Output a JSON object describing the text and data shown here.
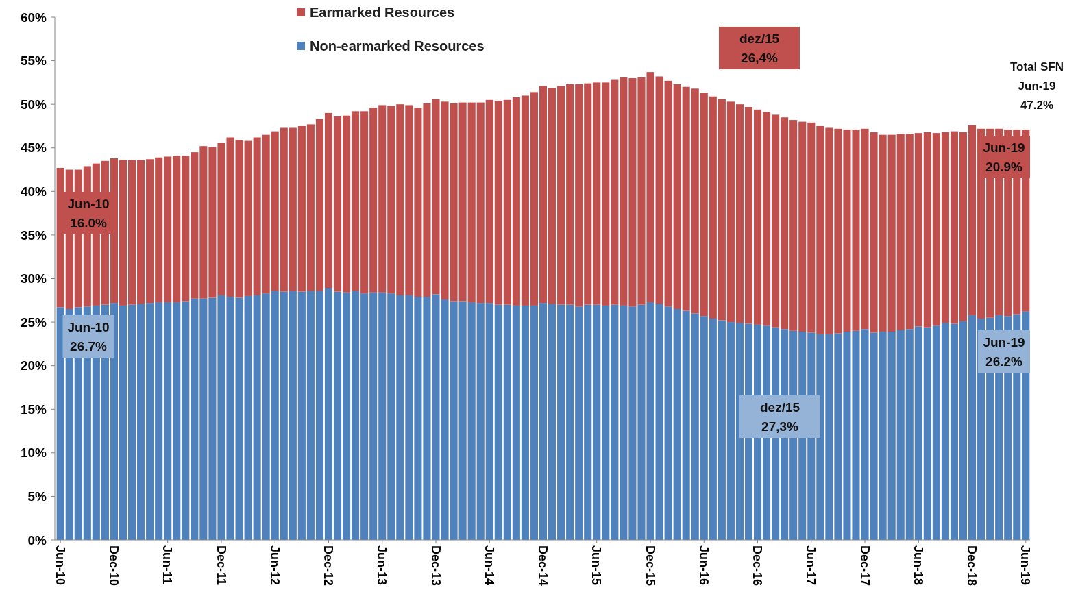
{
  "chart_data": {
    "type": "bar",
    "stacked": true,
    "legend": "top",
    "grid": false,
    "categories": [
      "Jun-10",
      null,
      null,
      null,
      null,
      null,
      "Dec-10",
      null,
      null,
      null,
      null,
      null,
      "Jun-11",
      null,
      null,
      null,
      null,
      null,
      "Dec-11",
      null,
      null,
      null,
      null,
      null,
      "Jun-12",
      null,
      null,
      null,
      null,
      null,
      "Dec-12",
      null,
      null,
      null,
      null,
      null,
      "Jun-13",
      null,
      null,
      null,
      null,
      null,
      "Dec-13",
      null,
      null,
      null,
      null,
      null,
      "Jun-14",
      null,
      null,
      null,
      null,
      null,
      "Dec-14",
      null,
      null,
      null,
      null,
      null,
      "Jun-15",
      null,
      null,
      null,
      null,
      null,
      "Dec-15",
      null,
      null,
      null,
      null,
      null,
      "Jun-16",
      null,
      null,
      null,
      null,
      null,
      "Dec-16",
      null,
      null,
      null,
      null,
      null,
      "Jun-17",
      null,
      null,
      null,
      null,
      null,
      "Dec-17",
      null,
      null,
      null,
      null,
      null,
      "Jun-18",
      null,
      null,
      null,
      null,
      null,
      "Dec-18",
      null,
      null,
      null,
      null,
      null,
      "Jun-19"
    ],
    "ylim": [
      0,
      60
    ],
    "yticks": [
      {
        "value": 0,
        "label": "0%"
      },
      {
        "value": 5,
        "label": "5%"
      },
      {
        "value": 10,
        "label": "10%"
      },
      {
        "value": 15,
        "label": "15%"
      },
      {
        "value": 20,
        "label": "20%"
      },
      {
        "value": 25,
        "label": "25%"
      },
      {
        "value": 30,
        "label": "30%"
      },
      {
        "value": 35,
        "label": "35%"
      },
      {
        "value": 40,
        "label": "40%"
      },
      {
        "value": 45,
        "label": "45%"
      },
      {
        "value": 50,
        "label": "50%"
      },
      {
        "value": 55,
        "label": "55%"
      },
      {
        "value": 60,
        "label": "60%"
      }
    ],
    "series": [
      {
        "name": "Non-earmarked Resources",
        "color": "#4f81bd",
        "values": [
          26.7,
          26.5,
          26.7,
          26.8,
          26.9,
          27.0,
          27.2,
          26.9,
          27.0,
          27.1,
          27.2,
          27.3,
          27.3,
          27.3,
          27.4,
          27.7,
          27.7,
          27.8,
          28.1,
          27.9,
          27.8,
          28.0,
          28.1,
          28.3,
          28.6,
          28.5,
          28.6,
          28.5,
          28.6,
          28.6,
          28.9,
          28.5,
          28.4,
          28.6,
          28.3,
          28.4,
          28.4,
          28.3,
          28.1,
          28.1,
          27.9,
          27.9,
          28.2,
          27.6,
          27.4,
          27.4,
          27.3,
          27.2,
          27.2,
          27.0,
          27.0,
          26.9,
          26.9,
          26.9,
          27.2,
          27.1,
          27.0,
          27.0,
          26.8,
          27.0,
          27.0,
          26.9,
          27.0,
          26.9,
          26.8,
          27.0,
          27.3,
          27.1,
          26.8,
          26.5,
          26.3,
          26.0,
          25.7,
          25.4,
          25.2,
          25.0,
          24.9,
          24.8,
          24.7,
          24.6,
          24.4,
          24.2,
          24.0,
          23.9,
          23.8,
          23.6,
          23.6,
          23.7,
          23.9,
          24.0,
          24.2,
          23.8,
          23.9,
          23.9,
          24.1,
          24.2,
          24.5,
          24.4,
          24.6,
          24.9,
          24.8,
          25.1,
          25.8,
          25.4,
          25.5,
          25.8,
          25.7,
          25.9,
          26.2
        ]
      },
      {
        "name": "Earmarked Resources",
        "color": "#c0504d",
        "values": [
          16.0,
          16.0,
          15.8,
          16.1,
          16.3,
          16.5,
          16.6,
          16.7,
          16.6,
          16.5,
          16.5,
          16.6,
          16.7,
          16.8,
          16.7,
          16.8,
          17.5,
          17.3,
          17.5,
          18.3,
          18.1,
          17.8,
          18.1,
          18.2,
          18.3,
          18.8,
          18.7,
          19.0,
          19.1,
          19.7,
          20.1,
          20.1,
          20.3,
          20.6,
          20.9,
          21.2,
          21.5,
          21.5,
          21.9,
          21.8,
          21.7,
          22.2,
          22.4,
          22.7,
          22.7,
          22.8,
          22.9,
          23.0,
          23.3,
          23.4,
          23.5,
          23.9,
          24.1,
          24.5,
          24.9,
          24.8,
          25.1,
          25.3,
          25.5,
          25.4,
          25.5,
          25.6,
          25.8,
          26.2,
          26.2,
          26.1,
          26.4,
          26.1,
          25.9,
          25.8,
          25.7,
          25.8,
          25.6,
          25.5,
          25.4,
          25.3,
          25.1,
          24.9,
          24.7,
          24.5,
          24.4,
          24.3,
          24.2,
          24.1,
          24.1,
          23.9,
          23.7,
          23.5,
          23.2,
          23.1,
          23.0,
          23.0,
          22.6,
          22.6,
          22.5,
          22.4,
          22.2,
          22.4,
          22.1,
          21.9,
          22.1,
          21.7,
          21.8,
          21.8,
          21.7,
          21.4,
          21.4,
          21.2,
          20.9
        ]
      }
    ],
    "annotations": [
      "Jun-10\n16.0%",
      "Jun-10\n26.7%",
      "dez/15\n26,4%",
      "dez/15\n27,3%",
      "Jun-19\n20.9%",
      "Jun-19\n26.2%",
      "Total SFN\nJun-19\n47.2%"
    ]
  }
}
